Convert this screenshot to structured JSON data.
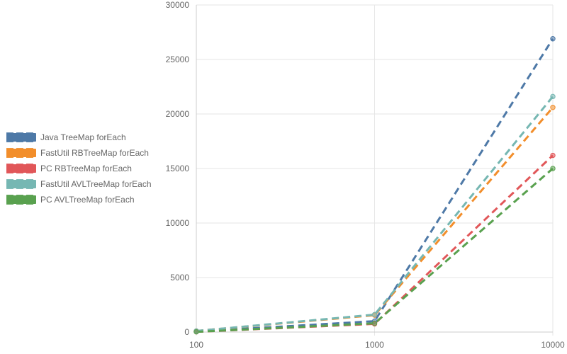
{
  "chart_data": {
    "type": "line",
    "title": "",
    "xlabel": "",
    "ylabel": "",
    "x": [
      "100",
      "1000",
      "10000"
    ],
    "xscale": "log",
    "ylim": [
      0,
      30000
    ],
    "yticks": [
      0,
      5000,
      10000,
      15000,
      20000,
      25000,
      30000
    ],
    "grid": true,
    "legend_position": "left",
    "line_style": "dashed",
    "series": [
      {
        "name": "Java TreeMap  forEach",
        "color": "#4e79a7",
        "values": [
          50,
          1000,
          26900
        ]
      },
      {
        "name": "FastUtil RBTreeMap  forEach",
        "color": "#f28e2b",
        "values": [
          100,
          1550,
          20600
        ]
      },
      {
        "name": "PC RBTreeMap  forEach",
        "color": "#e15759",
        "values": [
          20,
          750,
          16200
        ]
      },
      {
        "name": "FastUtil AVLTreeMap  forEach",
        "color": "#76b7b2",
        "values": [
          100,
          1600,
          21600
        ]
      },
      {
        "name": "PC AVLTreeMap  forEach",
        "color": "#59a14f",
        "values": [
          20,
          800,
          15000
        ]
      }
    ]
  }
}
